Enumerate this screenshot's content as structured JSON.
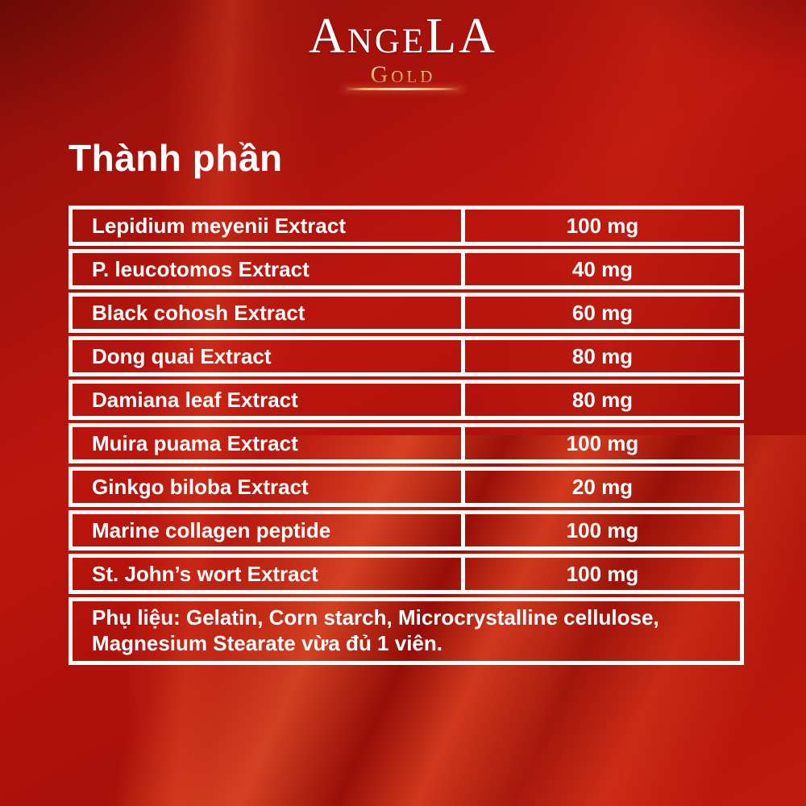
{
  "brand": {
    "name": "AngeLA",
    "sub_name": "Gold"
  },
  "section": {
    "title": "Thành phần"
  },
  "ingredients_table": {
    "rows": [
      {
        "name": "Lepidium meyenii Extract",
        "amount": "100 mg"
      },
      {
        "name": "P. leucotomos Extract",
        "amount": "40 mg"
      },
      {
        "name": "Black cohosh Extract",
        "amount": "60 mg"
      },
      {
        "name": "Dong quai Extract",
        "amount": "80 mg"
      },
      {
        "name": "Damiana leaf Extract",
        "amount": "80 mg"
      },
      {
        "name": "Muira puama Extract",
        "amount": "100 mg"
      },
      {
        "name": "Ginkgo biloba Extract",
        "amount": "20 mg"
      },
      {
        "name": "Marine collagen peptide",
        "amount": "100 mg"
      },
      {
        "name": "St. John’s wort Extract",
        "amount": "100 mg"
      }
    ],
    "excipients_note": "Phụ liệu: Gelatin, Corn starch, Microcrystalline cellulose, Magnesium Stearate vừa đủ 1 viên."
  },
  "colors": {
    "background_red": "#b2140c",
    "highlight_red": "#e8472a",
    "dark_red": "#8e0f09",
    "table_border": "#fdfaf5",
    "text": "#ffffff",
    "gold": "#ecc27a"
  }
}
